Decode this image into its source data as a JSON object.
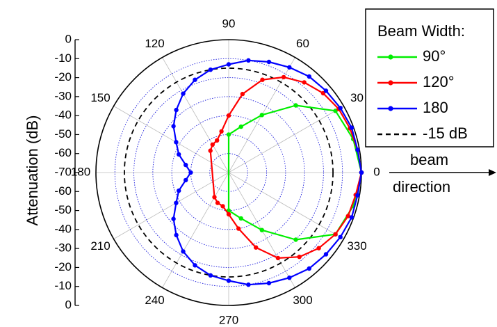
{
  "chart_data": {
    "type": "polar-line",
    "ylabel": "Attenuation (dB)",
    "radial_axis": {
      "min": -70,
      "max": 0,
      "ticks": [
        0,
        -10,
        -20,
        -30,
        -40,
        -50,
        -60,
        -70,
        -60,
        -50,
        -40,
        -30,
        -20,
        -10,
        0
      ],
      "circle_levels": [
        -60,
        -50,
        -40,
        -30,
        -20,
        -10
      ]
    },
    "angular_axis": {
      "ticks": [
        0,
        30,
        60,
        90,
        120,
        150,
        180,
        210,
        240,
        270,
        300,
        330
      ],
      "labels": [
        "0",
        "30",
        "60",
        "90",
        "120",
        "150",
        "180",
        "210",
        "240",
        "270",
        "300",
        "330"
      ],
      "units": "degrees"
    },
    "grid": true,
    "legend": {
      "title": "Beam Width:",
      "position": "top-right"
    },
    "annotation": {
      "line1": "beam",
      "line2": "direction"
    },
    "reference": {
      "name": "-15 dB",
      "value": -15,
      "color": "#000000",
      "style": "dashed"
    },
    "series": [
      {
        "name": "90°",
        "color": "#00ee00",
        "theta": [
          0,
          15,
          30,
          45,
          60,
          75,
          90,
          270,
          285,
          300,
          315,
          330,
          345,
          360
        ],
        "r": [
          0,
          -2,
          -5,
          -20,
          -35,
          -45,
          -50,
          -50,
          -45,
          -35,
          -20,
          -5,
          -2,
          0
        ]
      },
      {
        "name": "120°",
        "color": "#ff0000",
        "theta": [
          0,
          10,
          20,
          30,
          40,
          50,
          60,
          70,
          80,
          90,
          100,
          110,
          120,
          130,
          240,
          250,
          260,
          270,
          280,
          290,
          300,
          310,
          320,
          330,
          340,
          350,
          360
        ],
        "r": [
          0,
          -1,
          -2,
          -3,
          -5,
          -8,
          -12,
          -18,
          -28,
          -40,
          -48,
          -52,
          -53,
          -55,
          -55,
          -53,
          -52,
          -48,
          -40,
          -28,
          -18,
          -12,
          -8,
          -5,
          -3,
          -2,
          0
        ]
      },
      {
        "name": "180",
        "color": "#0000ff",
        "theta": [
          0,
          10,
          20,
          30,
          40,
          50,
          60,
          70,
          80,
          90,
          100,
          110,
          120,
          130,
          140,
          150,
          160,
          170,
          180,
          190,
          200,
          210,
          220,
          230,
          240,
          250,
          260,
          270,
          280,
          290,
          300,
          310,
          320,
          330,
          340,
          350,
          360
        ],
        "r": [
          0,
          -1,
          -1,
          -2,
          -3,
          -4,
          -6,
          -8,
          -10,
          -13,
          -15,
          -18,
          -22,
          -27,
          -32,
          -38,
          -42,
          -47,
          -50,
          -47,
          -42,
          -38,
          -32,
          -27,
          -22,
          -18,
          -15,
          -13,
          -10,
          -8,
          -6,
          -4,
          -3,
          -2,
          -1,
          -1,
          0
        ]
      }
    ]
  }
}
